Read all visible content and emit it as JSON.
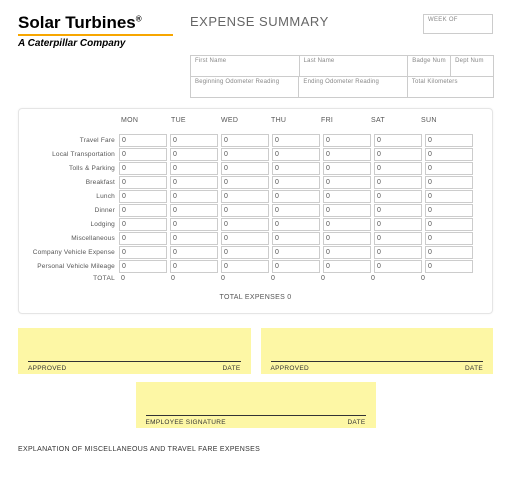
{
  "logo": {
    "main": "Solar Turbines",
    "sub": "A Caterpillar Company"
  },
  "title": "EXPENSE SUMMARY",
  "weekof_label": "WEEK OF",
  "fields": {
    "first_name": "First Name",
    "last_name": "Last Name",
    "badge_num": "Badge Num",
    "dept_num": "Dept Num",
    "begin_odo": "Beginning Odometer Reading",
    "end_odo": "Ending Odometer Reading",
    "total_km": "Total Kilometers"
  },
  "days": [
    "MON",
    "TUE",
    "WED",
    "THU",
    "FRI",
    "SAT",
    "SUN"
  ],
  "rows": [
    {
      "label": "Travel Fare",
      "vals": [
        "0",
        "0",
        "0",
        "0",
        "0",
        "0",
        "0"
      ]
    },
    {
      "label": "Local Transportation",
      "vals": [
        "0",
        "0",
        "0",
        "0",
        "0",
        "0",
        "0"
      ]
    },
    {
      "label": "Tolls & Parking",
      "vals": [
        "0",
        "0",
        "0",
        "0",
        "0",
        "0",
        "0"
      ]
    },
    {
      "label": "Breakfast",
      "vals": [
        "0",
        "0",
        "0",
        "0",
        "0",
        "0",
        "0"
      ]
    },
    {
      "label": "Lunch",
      "vals": [
        "0",
        "0",
        "0",
        "0",
        "0",
        "0",
        "0"
      ]
    },
    {
      "label": "Dinner",
      "vals": [
        "0",
        "0",
        "0",
        "0",
        "0",
        "0",
        "0"
      ]
    },
    {
      "label": "Lodging",
      "vals": [
        "0",
        "0",
        "0",
        "0",
        "0",
        "0",
        "0"
      ]
    },
    {
      "label": "Miscellaneous",
      "vals": [
        "0",
        "0",
        "0",
        "0",
        "0",
        "0",
        "0"
      ]
    },
    {
      "label": "Company Vehicle Expense",
      "vals": [
        "0",
        "0",
        "0",
        "0",
        "0",
        "0",
        "0"
      ]
    },
    {
      "label": "Personal Vehicle Mileage",
      "vals": [
        "0",
        "0",
        "0",
        "0",
        "0",
        "0",
        "0"
      ]
    }
  ],
  "total_label": "TOTAL",
  "totals": [
    "0",
    "0",
    "0",
    "0",
    "0",
    "0",
    "0"
  ],
  "total_expenses_label": "TOTAL EXPENSES",
  "total_expenses_value": "0",
  "sig": {
    "approved": "APPROVED",
    "date": "DATE",
    "employee": "EMPLOYEE SIGNATURE"
  },
  "explain": "EXPLANATION OF MISCELLANEOUS AND TRAVEL FARE EXPENSES",
  "colors": {
    "accent": "#f7a600",
    "sig_bg": "#fdf7a5"
  }
}
